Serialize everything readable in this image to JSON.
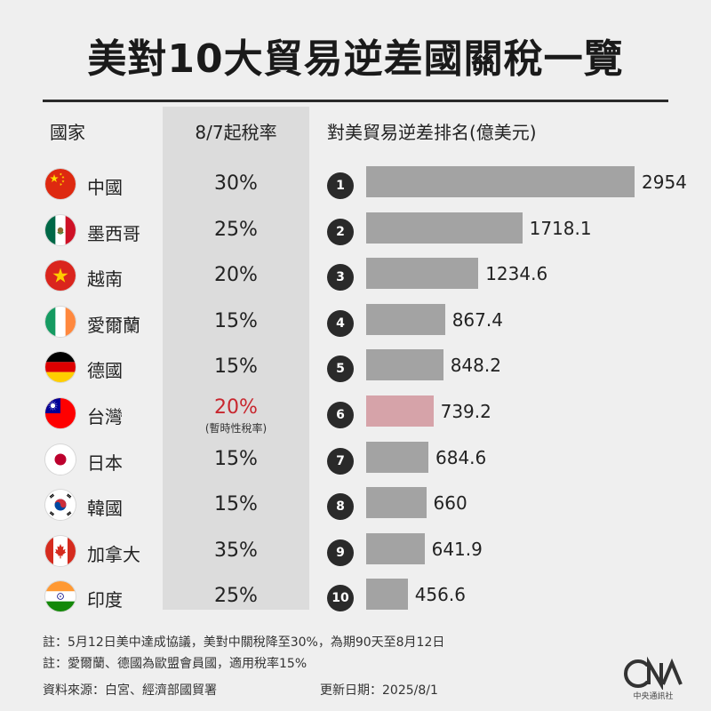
{
  "title": "美對10大貿易逆差國關稅一覽",
  "headers": {
    "country": "國家",
    "rate": "8/7起稅率",
    "rank": "對美貿易逆差排名(億美元)"
  },
  "chart_data": {
    "type": "bar",
    "categories": [
      "中國",
      "墨西哥",
      "越南",
      "愛爾蘭",
      "德國",
      "台灣",
      "日本",
      "韓國",
      "加拿大",
      "印度"
    ],
    "values": [
      2954,
      1718.1,
      1234.6,
      867.4,
      848.2,
      739.2,
      684.6,
      660,
      641.9,
      456.6
    ],
    "value_labels": [
      "2954",
      "1718.1",
      "1234.6",
      "867.4",
      "848.2",
      "739.2",
      "684.6",
      "660",
      "641.9",
      "456.6"
    ],
    "ranks": [
      "1",
      "2",
      "3",
      "4",
      "5",
      "6",
      "7",
      "8",
      "9",
      "10"
    ],
    "rates": [
      "30%",
      "25%",
      "20%",
      "15%",
      "15%",
      "20%",
      "15%",
      "15%",
      "35%",
      "25%"
    ],
    "rate_notes": [
      "",
      "",
      "",
      "",
      "",
      "(暫時性稅率)",
      "",
      "",
      "",
      ""
    ],
    "highlight_index": 5,
    "flags": [
      "china-flag-icon",
      "mexico-flag-icon",
      "vietnam-flag-icon",
      "ireland-flag-icon",
      "germany-flag-icon",
      "taiwan-flag-icon",
      "japan-flag-icon",
      "korea-flag-icon",
      "canada-flag-icon",
      "india-flag-icon"
    ],
    "orientation": "horizontal",
    "xlim": [
      0,
      2954
    ],
    "colors": {
      "bar": "#a3a3a3",
      "highlight_bar": "#d6a3a9",
      "highlight_text": "#c8262e"
    }
  },
  "notes": [
    "註：5月12日美中達成協議，美對中關稅降至30%，為期90天至8月12日",
    "註：愛爾蘭、德國為歐盟會員國，適用稅率15%"
  ],
  "source": "資料來源：白宮、經濟部國貿署",
  "updated": "更新日期：2025/8/1",
  "logo_text": "中央通訊社",
  "logo_letters": "CNA"
}
